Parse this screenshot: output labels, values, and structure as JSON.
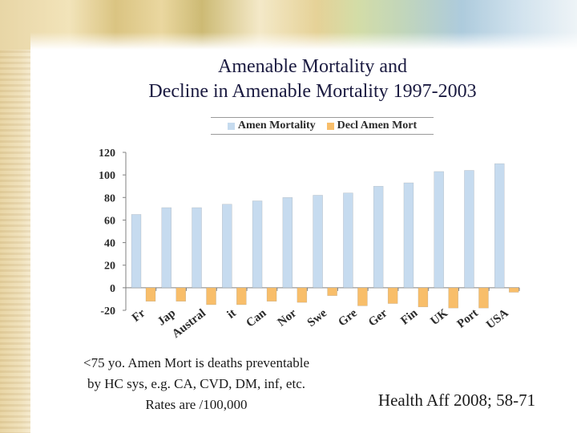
{
  "slide": {
    "title_line1": "Amenable Mortality and",
    "title_line2": "Decline in Amenable Mortality 1997-2003",
    "note_line1": "<75 yo.  Amen Mort is deaths preventable",
    "note_line2": "by HC sys, e.g. CA, CVD, DM, inf, etc.",
    "note_line3": "Rates are /100,000",
    "citation": "Health Aff 2008; 58-71"
  },
  "colors": {
    "amen_mortality": "#c6dbef",
    "decl_amen_mort": "#f8be6a",
    "axis": "#808080",
    "title": "#1a1a40"
  },
  "chart_data": {
    "type": "bar",
    "title": "",
    "xlabel": "",
    "ylabel": "",
    "ylim": [
      -20,
      120
    ],
    "yticks": [
      -20,
      0,
      20,
      40,
      60,
      80,
      100,
      120
    ],
    "grid": false,
    "legend_position": "top",
    "categories": [
      "Fr",
      "Jap",
      "Austral",
      "it",
      "Can",
      "Nor",
      "Swe",
      "Gre",
      "Ger",
      "Fin",
      "UK",
      "Port",
      "USA"
    ],
    "series": [
      {
        "name": "Amen Mortality",
        "values": [
          65,
          71,
          71,
          74,
          77,
          80,
          82,
          84,
          90,
          93,
          103,
          104,
          110
        ]
      },
      {
        "name": "Decl Amen Mort",
        "values": [
          -12,
          -12,
          -15,
          -15,
          -12,
          -13,
          -7,
          -16,
          -14,
          -17,
          -18,
          -18,
          -4
        ]
      }
    ]
  }
}
